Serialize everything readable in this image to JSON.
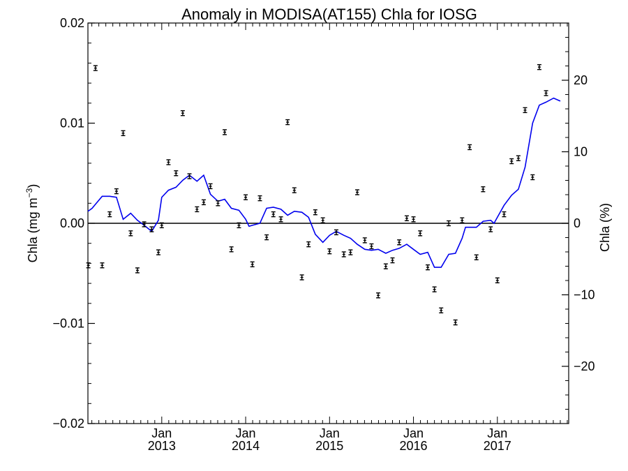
{
  "chart_data": {
    "type": "scatter",
    "title": "Anomaly in MODISA(AT155) Chla for IOSG",
    "ylabel": {
      "main": "Chla (mg m",
      "sup": "−3",
      "close": ")"
    },
    "y2label": "Chla (%)",
    "ylim": [
      -0.02,
      0.02
    ],
    "y2lim": [
      -28,
      28
    ],
    "xlim": [
      2012.12,
      2017.85
    ],
    "yticks": [
      {
        "v": 0.02,
        "label": "0.02"
      },
      {
        "v": 0.01,
        "label": "0.01"
      },
      {
        "v": 0.0,
        "label": "0.00"
      },
      {
        "v": -0.01,
        "label": "−0.01"
      },
      {
        "v": -0.02,
        "label": "−0.02"
      }
    ],
    "y2ticks": [
      {
        "v": 20,
        "label": "20"
      },
      {
        "v": 10,
        "label": "10"
      },
      {
        "v": 0,
        "label": "0"
      },
      {
        "v": -10,
        "label": "−10"
      },
      {
        "v": -20,
        "label": "−20"
      }
    ],
    "xticks": [
      {
        "v": 2013.0,
        "month": "Jan",
        "year": "2013"
      },
      {
        "v": 2014.0,
        "month": "Jan",
        "year": "2014"
      },
      {
        "v": 2015.0,
        "month": "Jan",
        "year": "2015"
      },
      {
        "v": 2016.0,
        "month": "Jan",
        "year": "2016"
      },
      {
        "v": 2017.0,
        "month": "Jan",
        "year": "2017"
      }
    ],
    "zero_line": 0,
    "points_color": "#000000",
    "line_color": "#0000ee",
    "points": [
      [
        2012.125,
        -0.0042
      ],
      [
        2012.21,
        0.0155
      ],
      [
        2012.29,
        -0.0042
      ],
      [
        2012.38,
        0.0009
      ],
      [
        2012.46,
        0.0032
      ],
      [
        2012.54,
        0.009
      ],
      [
        2012.63,
        -0.001
      ],
      [
        2012.71,
        -0.0047
      ],
      [
        2012.79,
        -0.0001
      ],
      [
        2012.88,
        -0.0006
      ],
      [
        2012.96,
        -0.0029
      ],
      [
        2013.0,
        -0.0002
      ],
      [
        2013.08,
        0.0061
      ],
      [
        2013.17,
        0.005
      ],
      [
        2013.25,
        0.011
      ],
      [
        2013.33,
        0.0047
      ],
      [
        2013.42,
        0.0014
      ],
      [
        2013.5,
        0.0021
      ],
      [
        2013.58,
        0.0037
      ],
      [
        2013.67,
        0.002
      ],
      [
        2013.75,
        0.0091
      ],
      [
        2013.83,
        -0.0026
      ],
      [
        2013.92,
        -0.0002
      ],
      [
        2014.0,
        0.0026
      ],
      [
        2014.08,
        -0.0041
      ],
      [
        2014.17,
        0.0025
      ],
      [
        2014.25,
        -0.0014
      ],
      [
        2014.33,
        0.0009
      ],
      [
        2014.42,
        0.0004
      ],
      [
        2014.5,
        0.0101
      ],
      [
        2014.58,
        0.0033
      ],
      [
        2014.67,
        -0.0054
      ],
      [
        2014.75,
        -0.0021
      ],
      [
        2014.83,
        0.0011
      ],
      [
        2014.92,
        0.0003
      ],
      [
        2015.0,
        -0.0028
      ],
      [
        2015.08,
        -0.0009
      ],
      [
        2015.17,
        -0.0031
      ],
      [
        2015.25,
        -0.0029
      ],
      [
        2015.33,
        0.0031
      ],
      [
        2015.42,
        -0.0017
      ],
      [
        2015.5,
        -0.0023
      ],
      [
        2015.58,
        -0.0072
      ],
      [
        2015.67,
        -0.0043
      ],
      [
        2015.75,
        -0.0037
      ],
      [
        2015.83,
        -0.0019
      ],
      [
        2015.92,
        0.0005
      ],
      [
        2016.0,
        0.0004
      ],
      [
        2016.08,
        -0.001
      ],
      [
        2016.17,
        -0.0044
      ],
      [
        2016.25,
        -0.0066
      ],
      [
        2016.33,
        -0.0087
      ],
      [
        2016.42,
        0.0
      ],
      [
        2016.5,
        -0.0099
      ],
      [
        2016.58,
        0.0003
      ],
      [
        2016.67,
        0.0076
      ],
      [
        2016.75,
        -0.0034
      ],
      [
        2016.83,
        0.0034
      ],
      [
        2016.92,
        -0.0006
      ],
      [
        2017.0,
        -0.0057
      ],
      [
        2017.08,
        0.0009
      ],
      [
        2017.17,
        0.0062
      ],
      [
        2017.25,
        0.0065
      ],
      [
        2017.33,
        0.0113
      ],
      [
        2017.42,
        0.0046
      ],
      [
        2017.5,
        0.0156
      ],
      [
        2017.58,
        0.013
      ]
    ],
    "line": [
      [
        2012.12,
        0.0012
      ],
      [
        2012.17,
        0.0015
      ],
      [
        2012.21,
        0.0019
      ],
      [
        2012.29,
        0.0027
      ],
      [
        2012.38,
        0.0027
      ],
      [
        2012.46,
        0.0026
      ],
      [
        2012.54,
        0.0004
      ],
      [
        2012.63,
        0.001
      ],
      [
        2012.71,
        0.0003
      ],
      [
        2012.79,
        -0.0002
      ],
      [
        2012.88,
        -0.0008
      ],
      [
        2012.96,
        0.0003
      ],
      [
        2013.0,
        0.0026
      ],
      [
        2013.08,
        0.0033
      ],
      [
        2013.17,
        0.0036
      ],
      [
        2013.25,
        0.0043
      ],
      [
        2013.33,
        0.0048
      ],
      [
        2013.42,
        0.0042
      ],
      [
        2013.5,
        0.0048
      ],
      [
        2013.58,
        0.0029
      ],
      [
        2013.67,
        0.0022
      ],
      [
        2013.75,
        0.0024
      ],
      [
        2013.83,
        0.0015
      ],
      [
        2013.92,
        0.0013
      ],
      [
        2014.0,
        0.0004
      ],
      [
        2014.04,
        -0.0003
      ],
      [
        2014.08,
        -0.0002
      ],
      [
        2014.17,
        0.0
      ],
      [
        2014.25,
        0.0015
      ],
      [
        2014.33,
        0.0016
      ],
      [
        2014.42,
        0.0014
      ],
      [
        2014.5,
        0.0008
      ],
      [
        2014.58,
        0.0012
      ],
      [
        2014.67,
        0.0011
      ],
      [
        2014.75,
        0.0006
      ],
      [
        2014.83,
        -0.0011
      ],
      [
        2014.92,
        -0.0019
      ],
      [
        2015.0,
        -0.0012
      ],
      [
        2015.08,
        -0.0008
      ],
      [
        2015.17,
        -0.0012
      ],
      [
        2015.25,
        -0.0015
      ],
      [
        2015.33,
        -0.0021
      ],
      [
        2015.42,
        -0.0026
      ],
      [
        2015.5,
        -0.0027
      ],
      [
        2015.58,
        -0.0026
      ],
      [
        2015.67,
        -0.003
      ],
      [
        2015.75,
        -0.0027
      ],
      [
        2015.83,
        -0.0025
      ],
      [
        2015.92,
        -0.0021
      ],
      [
        2016.0,
        -0.0026
      ],
      [
        2016.08,
        -0.0031
      ],
      [
        2016.17,
        -0.0029
      ],
      [
        2016.25,
        -0.0044
      ],
      [
        2016.33,
        -0.0044
      ],
      [
        2016.42,
        -0.0031
      ],
      [
        2016.5,
        -0.003
      ],
      [
        2016.58,
        -0.0015
      ],
      [
        2016.62,
        -0.0004
      ],
      [
        2016.67,
        -0.0004
      ],
      [
        2016.75,
        -0.0004
      ],
      [
        2016.83,
        0.0002
      ],
      [
        2016.92,
        0.0003
      ],
      [
        2016.96,
        0.0
      ],
      [
        2017.0,
        0.0006
      ],
      [
        2017.08,
        0.0018
      ],
      [
        2017.17,
        0.0028
      ],
      [
        2017.25,
        0.0034
      ],
      [
        2017.33,
        0.0056
      ],
      [
        2017.42,
        0.01
      ],
      [
        2017.5,
        0.0118
      ],
      [
        2017.58,
        0.0121
      ],
      [
        2017.67,
        0.0125
      ],
      [
        2017.75,
        0.0122
      ]
    ]
  }
}
